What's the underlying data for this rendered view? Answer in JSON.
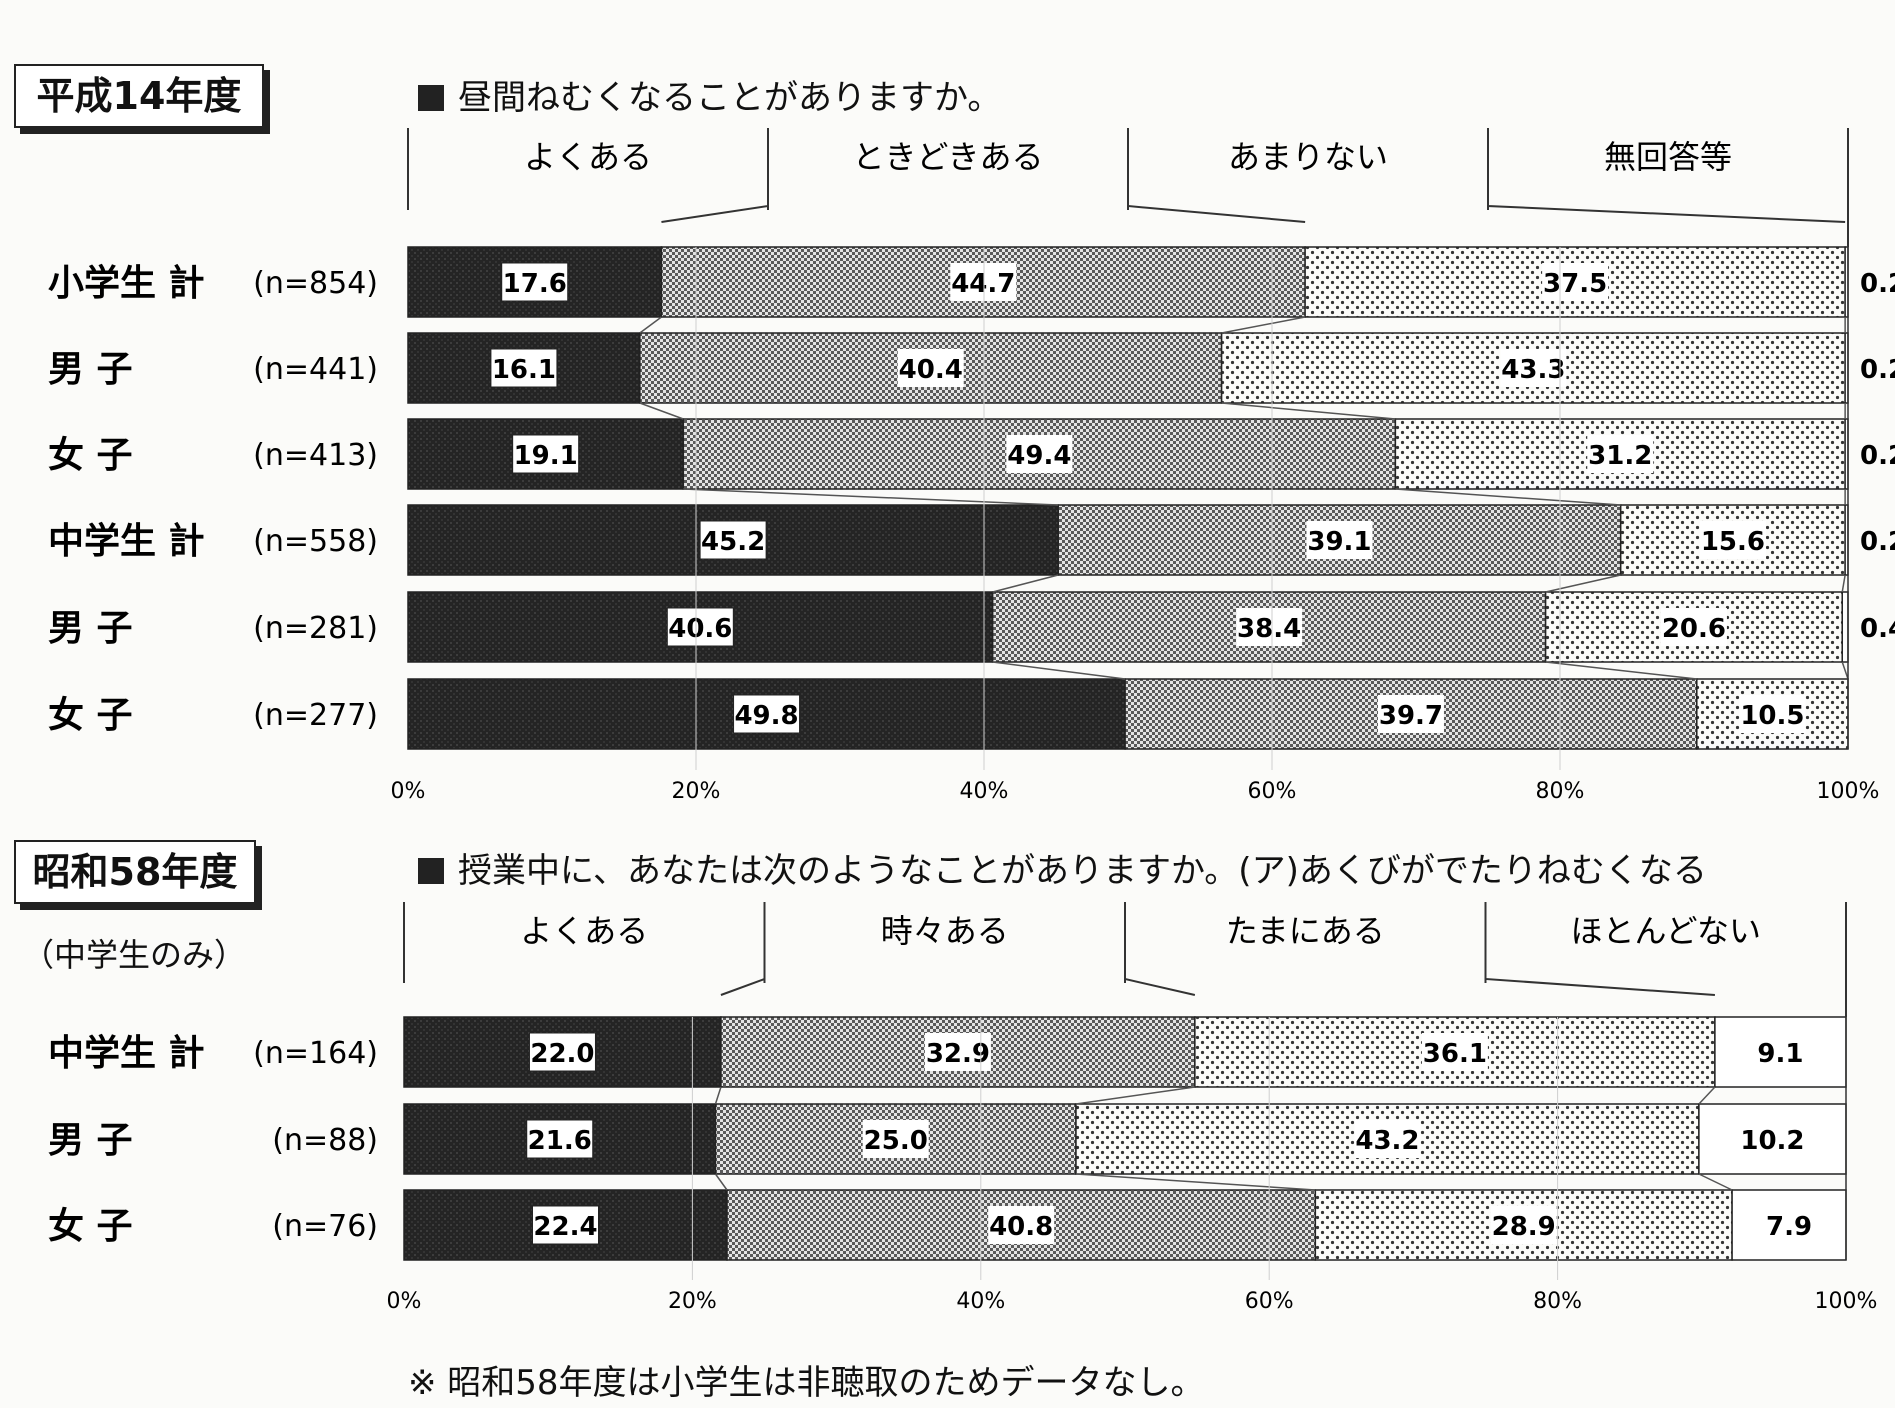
{
  "chart_data": [
    {
      "type": "bar",
      "orientation": "horizontal-stacked-100",
      "period_label": "平成14年度",
      "title": "昼間ねむくなることがありますか。",
      "legend": [
        "よくある",
        "ときどきある",
        "あまりない",
        "無回答等"
      ],
      "rows": [
        {
          "label": "小学生 計",
          "n": "(n=854)",
          "values": [
            "17.6",
            "44.7",
            "37.5",
            "0.2"
          ]
        },
        {
          "label": "男 子",
          "n": "(n=441)",
          "values": [
            "16.1",
            "40.4",
            "43.3",
            "0.2"
          ]
        },
        {
          "label": "女 子",
          "n": "(n=413)",
          "values": [
            "19.1",
            "49.4",
            "31.2",
            "0.2"
          ]
        },
        {
          "label": "中学生 計",
          "n": "(n=558)",
          "values": [
            "45.2",
            "39.1",
            "15.6",
            "0.2"
          ]
        },
        {
          "label": "男 子",
          "n": "(n=281)",
          "values": [
            "40.6",
            "38.4",
            "20.6",
            "0.4"
          ]
        },
        {
          "label": "女 子",
          "n": "(n=277)",
          "values": [
            "49.8",
            "39.7",
            "10.5",
            ""
          ]
        }
      ],
      "xticks": [
        "0%",
        "20%",
        "40%",
        "60%",
        "80%",
        "100%"
      ],
      "xlim": [
        0,
        100
      ]
    },
    {
      "type": "bar",
      "orientation": "horizontal-stacked-100",
      "period_label": "昭和58年度",
      "subnote": "（中学生のみ）",
      "title": "授業中に、あなたは次のようなことがありますか。(ア)あくびがでたりねむくなる",
      "legend": [
        "よくある",
        "時々ある",
        "たまにある",
        "ほとんどない"
      ],
      "rows": [
        {
          "label": "中学生 計",
          "n": "(n=164)",
          "values": [
            "22.0",
            "32.9",
            "36.1",
            "9.1"
          ]
        },
        {
          "label": "男 子",
          "n": "(n=88)",
          "values": [
            "21.6",
            "25.0",
            "43.2",
            "10.2"
          ]
        },
        {
          "label": "女 子",
          "n": "(n=76)",
          "values": [
            "22.4",
            "40.8",
            "28.9",
            "7.9"
          ]
        }
      ],
      "xticks": [
        "0%",
        "20%",
        "40%",
        "60%",
        "80%",
        "100%"
      ],
      "xlim": [
        0,
        100
      ]
    }
  ],
  "footnote": "※ 昭和58年度は小学生は非聴取のためデータなし。"
}
